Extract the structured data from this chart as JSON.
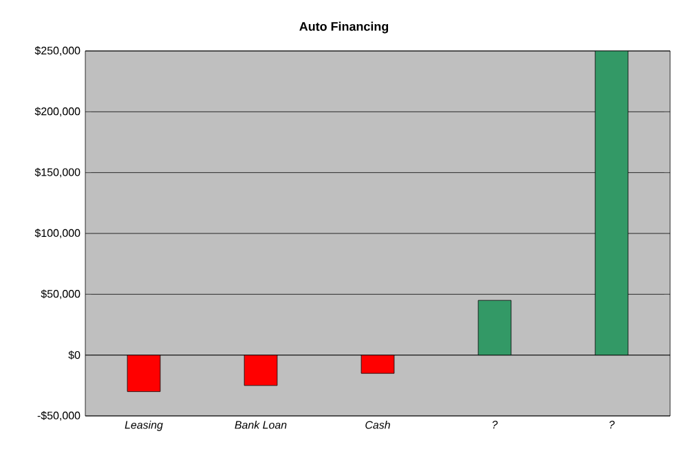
{
  "chart_data": {
    "type": "bar",
    "title": "Auto Financing",
    "categories": [
      "Leasing",
      "Bank Loan",
      "Cash",
      "?",
      "?"
    ],
    "values": [
      -30000,
      -25000,
      -15000,
      45000,
      250000
    ],
    "colors": [
      "#ff0000",
      "#ff0000",
      "#ff0000",
      "#339966",
      "#339966"
    ],
    "ylim": [
      -50000,
      250000
    ],
    "yticks": [
      {
        "value": -50000,
        "label": "-$50,000"
      },
      {
        "value": 0,
        "label": "$0"
      },
      {
        "value": 50000,
        "label": "$50,000"
      },
      {
        "value": 100000,
        "label": "$100,000"
      },
      {
        "value": 150000,
        "label": "$150,000"
      },
      {
        "value": 200000,
        "label": "$200,000"
      },
      {
        "value": 250000,
        "label": "$250,000"
      }
    ],
    "grid": "y"
  }
}
